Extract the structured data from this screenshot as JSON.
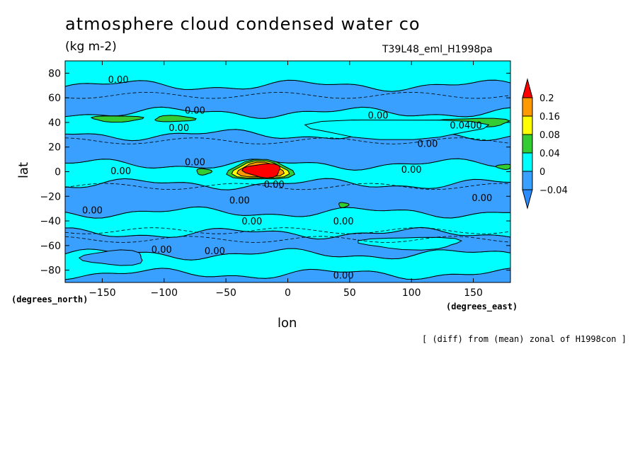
{
  "header": {
    "title": "atmosphere cloud condensed water co",
    "units": "(kg m-2)",
    "experiment": "T39L48_eml_H1998pa",
    "note": "[ (diff) from (mean) zonal of H1998con ]"
  },
  "chart_data": {
    "type": "heatmap",
    "title": "atmosphere cloud condensed water co",
    "xlabel": "lon",
    "ylabel": "lat",
    "x_unit": "(degrees_east)",
    "y_unit": "(degrees_north)",
    "xlim": [
      -180,
      180
    ],
    "ylim": [
      -90,
      90
    ],
    "x_ticks": [
      -150,
      -100,
      -50,
      0,
      50,
      100,
      150
    ],
    "y_ticks": [
      -80,
      -60,
      -40,
      -20,
      0,
      20,
      40,
      60,
      80
    ],
    "colorbar": {
      "levels": [
        -0.04,
        0,
        0.04,
        0.08,
        0.16,
        0.2
      ],
      "level_labels": [
        "-0.04",
        "0",
        "0.04",
        "0.08",
        "0.16",
        "0.2"
      ],
      "colors": [
        "#2b8cff",
        "#3aa0ff",
        "#00ffff",
        "#33cc33",
        "#ffff00",
        "#ff9900",
        "#ff0000"
      ]
    },
    "bands": [
      {
        "lat0": -90,
        "lat1": -83,
        "color": "#3aa0ff"
      },
      {
        "lat0": -83,
        "lat1": -67,
        "color": "#00ffff"
      },
      {
        "lat0": -67,
        "lat1": -50,
        "color": "#3aa0ff"
      },
      {
        "lat0": -50,
        "lat1": -33,
        "color": "#00ffff"
      },
      {
        "lat0": -33,
        "lat1": -10,
        "color": "#3aa0ff"
      },
      {
        "lat0": -10,
        "lat1": 6,
        "color": "#00ffff"
      },
      {
        "lat0": 6,
        "lat1": 30,
        "color": "#3aa0ff"
      },
      {
        "lat0": 30,
        "lat1": 48,
        "color": "#00ffff"
      },
      {
        "lat0": 48,
        "lat1": 70,
        "color": "#3aa0ff"
      },
      {
        "lat0": 70,
        "lat1": 90,
        "color": "#00ffff"
      }
    ],
    "patches": [
      {
        "lon": -138,
        "lat": 43,
        "rlon": 20,
        "rlat": 2.5,
        "color": "#33cc33"
      },
      {
        "lon": -92,
        "lat": 43,
        "rlon": 16,
        "rlat": 2.5,
        "color": "#33cc33"
      },
      {
        "lon": 150,
        "lat": 40,
        "rlon": 30,
        "rlat": 3.5,
        "color": "#33cc33"
      },
      {
        "lon": 88,
        "lat": 35,
        "rlon": 70,
        "rlat": 8,
        "color": "#00ffff"
      },
      {
        "lon": -68,
        "lat": 0,
        "rlon": 6,
        "rlat": 2.5,
        "color": "#33cc33"
      },
      {
        "lon": 45,
        "lat": -27,
        "rlon": 4,
        "rlat": 2,
        "color": "#33cc33"
      },
      {
        "lon": 175,
        "lat": 4,
        "rlon": 6,
        "rlat": 2,
        "color": "#33cc33"
      },
      {
        "lon": -22,
        "lat": 1,
        "rlon": 26,
        "rlat": 8,
        "color": "#33cc33"
      },
      {
        "lon": -22,
        "lat": 1,
        "rlon": 22,
        "rlat": 7,
        "color": "#ffff00"
      },
      {
        "lon": -22,
        "lat": 1,
        "rlon": 18,
        "rlat": 6,
        "color": "#ff9900"
      },
      {
        "lon": -20,
        "lat": 1,
        "rlon": 15,
        "rlat": 5.5,
        "color": "#ff0000"
      },
      {
        "lon": -140,
        "lat": -70,
        "rlon": 25,
        "rlat": 6,
        "color": "#3aa0ff"
      },
      {
        "lon": 100,
        "lat": -58,
        "rlon": 40,
        "rlat": 5,
        "color": "#00ffff"
      }
    ],
    "contour_labels": [
      {
        "lon": -137,
        "lat": 75,
        "text": "0.00"
      },
      {
        "lon": -75,
        "lat": 50,
        "text": "0.00"
      },
      {
        "lon": -88,
        "lat": 36,
        "text": "0.00"
      },
      {
        "lon": 73,
        "lat": 46,
        "text": "0.00"
      },
      {
        "lon": 144,
        "lat": 38,
        "text": "0.0400"
      },
      {
        "lon": 113,
        "lat": 23,
        "text": "0.00"
      },
      {
        "lon": -75,
        "lat": 8,
        "text": "0.00"
      },
      {
        "lon": -135,
        "lat": 1,
        "text": "0.00"
      },
      {
        "lon": 100,
        "lat": 2,
        "text": "0.00"
      },
      {
        "lon": -11,
        "lat": -10,
        "text": "0.00"
      },
      {
        "lon": -39,
        "lat": -23,
        "text": "0.00"
      },
      {
        "lon": 157,
        "lat": -21,
        "text": "0.00"
      },
      {
        "lon": -158,
        "lat": -31,
        "text": "0.00"
      },
      {
        "lon": -29,
        "lat": -40,
        "text": "0.00"
      },
      {
        "lon": 45,
        "lat": -40,
        "text": "0.00"
      },
      {
        "lon": -102,
        "lat": -63,
        "text": "0.00"
      },
      {
        "lon": -59,
        "lat": -64,
        "text": "0.00"
      },
      {
        "lon": 45,
        "lat": -84,
        "text": "0.00"
      }
    ]
  }
}
